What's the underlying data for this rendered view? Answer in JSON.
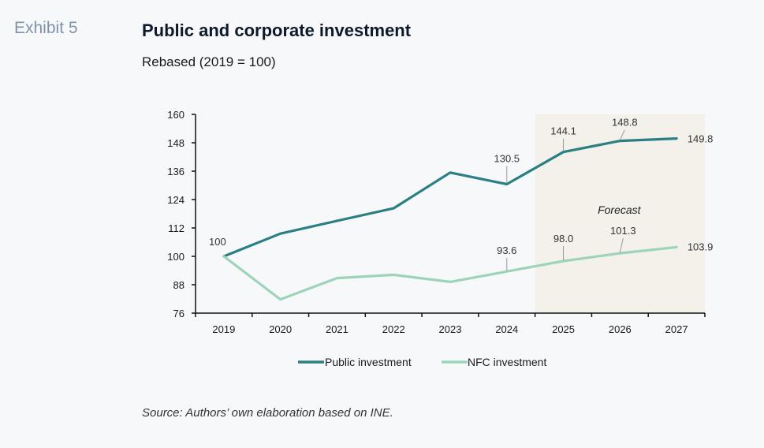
{
  "header": {
    "exhibit": "Exhibit 5",
    "title": "Public and corporate investment",
    "subtitle": "Rebased (2019 = 100)"
  },
  "footer": {
    "source": "Source: Authors’ own elaboration based on INE."
  },
  "colors": {
    "public": "#2a7f84",
    "nfc": "#9dd4b8",
    "forecast_bg": "#f3f1ea",
    "axis": "#111111"
  },
  "chart_data": {
    "type": "line",
    "title": "Public and corporate investment",
    "subtitle": "Rebased (2019 = 100)",
    "xlabel": "",
    "ylabel": "",
    "categories": [
      "2019",
      "2020",
      "2021",
      "2022",
      "2023",
      "2024",
      "2025",
      "2026",
      "2027"
    ],
    "ylim": [
      76,
      160
    ],
    "yticks": [
      76,
      88,
      100,
      112,
      124,
      136,
      148,
      160
    ],
    "grid": false,
    "legend_position": "bottom",
    "forecast_region": {
      "from": "2025",
      "to": "2027",
      "label": "Forecast"
    },
    "series": [
      {
        "name": "Public investment",
        "color": "#2a7f84",
        "values": [
          100,
          109.6,
          115.0,
          120.3,
          135.4,
          130.5,
          144.1,
          148.8,
          149.8
        ],
        "labels": {
          "0": "100",
          "5": "130.5",
          "6": "144.1",
          "7": "148.8",
          "8": "149.8"
        }
      },
      {
        "name": "NFC investment",
        "color": "#9dd4b8",
        "values": [
          100,
          81.8,
          90.8,
          92.2,
          89.2,
          93.6,
          98.0,
          101.3,
          103.9
        ],
        "labels": {
          "5": "93.6",
          "6": "98.0",
          "7": "101.3",
          "8": "103.9"
        }
      }
    ]
  }
}
